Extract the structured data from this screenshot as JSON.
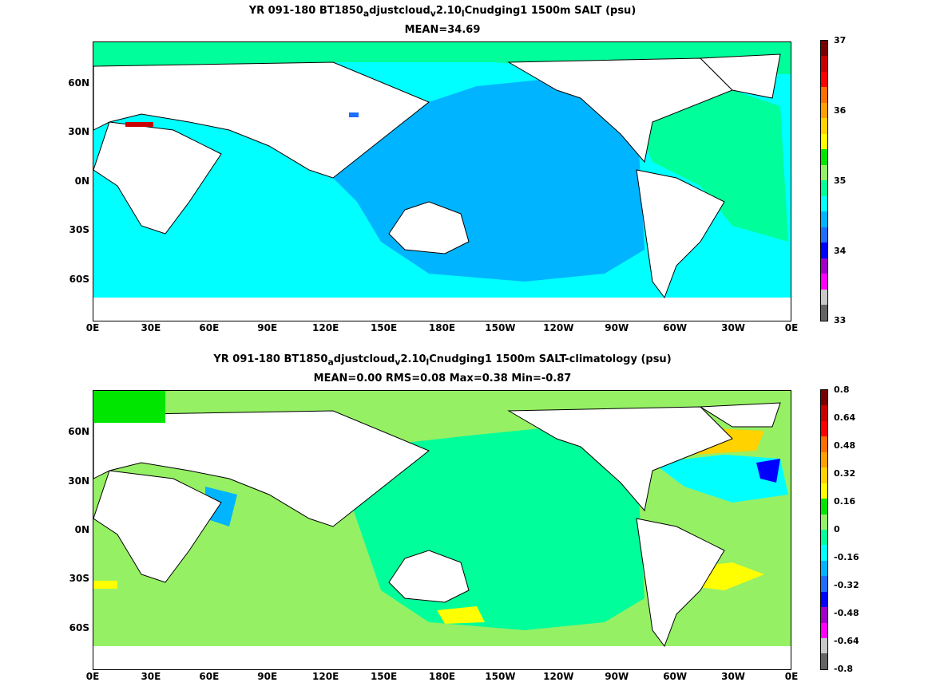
{
  "chart_data": [
    {
      "type": "heatmap",
      "title_parts": [
        "YR 091-180 BT1850",
        "a",
        "djustcloud",
        "v",
        "2.10",
        "l",
        "Cnudging1 1500m SALT (psu)"
      ],
      "subtitle": "MEAN=34.69",
      "x_ticks": [
        "0E",
        "30E",
        "60E",
        "90E",
        "120E",
        "150E",
        "180E",
        "150W",
        "120W",
        "90W",
        "60W",
        "30W",
        "0E"
      ],
      "y_ticks": [
        "60N",
        "30N",
        "0N",
        "30S",
        "60S"
      ],
      "xlim": [
        0,
        360
      ],
      "ylim": [
        -78,
        90
      ],
      "colorbar_labels": [
        "37",
        "36",
        "35",
        "34",
        "33"
      ],
      "colorbar_range": [
        33,
        37
      ],
      "colors": [
        "#646464",
        "#c8c8c8",
        "#ff00ff",
        "#a000c8",
        "#0000ff",
        "#1e6eff",
        "#00b4ff",
        "#00ffff",
        "#00ff9a",
        "#96f064",
        "#00e600",
        "#ffff00",
        "#ffd200",
        "#ffa000",
        "#ff6e00",
        "#ff0000",
        "#c80000",
        "#780000"
      ]
    },
    {
      "type": "heatmap",
      "title_parts": [
        "YR 091-180 BT1850",
        "a",
        "djustcloud",
        "v",
        "2.10",
        "l",
        "Cnudging1 1500m SALT-climatology (psu)"
      ],
      "subtitle": "MEAN=0.00   RMS=0.08   Max=0.38   Min=-0.87",
      "x_ticks": [
        "0E",
        "30E",
        "60E",
        "90E",
        "120E",
        "150E",
        "180E",
        "150W",
        "120W",
        "90W",
        "60W",
        "30W",
        "0E"
      ],
      "y_ticks": [
        "60N",
        "30N",
        "0N",
        "30S",
        "60S"
      ],
      "xlim": [
        0,
        360
      ],
      "ylim": [
        -78,
        90
      ],
      "colorbar_labels": [
        "0.8",
        "0.64",
        "0.48",
        "0.32",
        "0.16",
        "0",
        "-0.16",
        "-0.32",
        "-0.48",
        "-0.64",
        "-0.8"
      ],
      "colorbar_range": [
        -0.8,
        0.8
      ],
      "colors": [
        "#646464",
        "#c8c8c8",
        "#ff00ff",
        "#a000c8",
        "#0000ff",
        "#1e6eff",
        "#00b4ff",
        "#00ffff",
        "#00ff9a",
        "#96f064",
        "#00e600",
        "#ffff00",
        "#ffd200",
        "#ffa000",
        "#ff6e00",
        "#ff0000",
        "#c80000",
        "#780000"
      ]
    }
  ]
}
